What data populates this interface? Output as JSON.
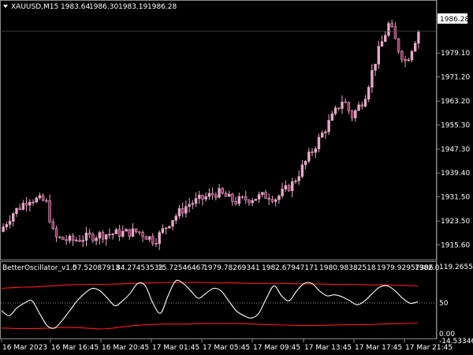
{
  "chart_header": {
    "symbol": "XAUUSD,M15",
    "open": "1983.64",
    "high": "1986.30",
    "low": "1983.19",
    "close": "1986.28"
  },
  "indicator_header": {
    "name": "BetterOscillator_v1.0",
    "v1": "57.52087913",
    "v2": "84.27453533",
    "v3": "15.72546467",
    "v4": "1979.78269341",
    "v5": "1982.67947171",
    "v6": "1980.98382518",
    "v7": "1979.92957306",
    "v8": "1982.0"
  },
  "current_price_label": "1986.28",
  "price_axis": {
    "min": 1911,
    "max": 1993,
    "ticks": [
      "1979.10",
      "1971.20",
      "1963.20",
      "1955.30",
      "1947.30",
      "1939.40",
      "1931.50",
      "1923.50",
      "1915.60"
    ]
  },
  "indicator_axis": {
    "min": -14.5,
    "max": 119.3,
    "ticks": [
      "119.26559",
      "50",
      "0.00",
      "-14.53346"
    ]
  },
  "time_axis": {
    "ticks": [
      "16 Mar 2023",
      "16 Mar 16:45",
      "16 Mar 20:45",
      "17 Mar 01:45",
      "17 Mar 05:45",
      "17 Mar 09:45",
      "17 Mar 13:45",
      "17 Mar 17:45",
      "17 Mar 21:45"
    ]
  },
  "colors": {
    "background": "#000000",
    "candle": "#e8a9c9",
    "candle_dark": "#8c2c55",
    "oscillator": "#ffffff",
    "bands": "#ff1a1a",
    "grid": "#8a8a8a",
    "level_line": "#909090"
  },
  "chart_data": [
    {
      "type": "candlestick",
      "symbol": "XAUUSD",
      "timeframe": "M15",
      "x": [
        "16 Mar 2023",
        "16 Mar 16:45",
        "16 Mar 20:45",
        "17 Mar 01:45",
        "17 Mar 05:45",
        "17 Mar 09:45",
        "17 Mar 13:45",
        "17 Mar 17:45",
        "17 Mar 21:45"
      ],
      "approx_close_at_ticks": [
        1925,
        1917,
        1919,
        1922,
        1930,
        1931,
        1949,
        1968,
        1986
      ],
      "last_close": 1986.28,
      "ylim": [
        1911,
        1993
      ]
    },
    {
      "type": "line",
      "title": "BetterOscillator_v1.0",
      "series": [
        {
          "name": "oscillator",
          "values": [
            40,
            30,
            45,
            55,
            60,
            35,
            10,
            5,
            20,
            40,
            60,
            75,
            85,
            80,
            65,
            50,
            60,
            75,
            95,
            90,
            55,
            35,
            70,
            100,
            95,
            80,
            65,
            75,
            85,
            80,
            60,
            40,
            30,
            25,
            35,
            65,
            90,
            70,
            60,
            80,
            95,
            95,
            80,
            70,
            72,
            68,
            60,
            52,
            60,
            75,
            88,
            90,
            80,
            65,
            55,
            58
          ]
        },
        {
          "name": "upper band",
          "values": [
            85,
            87,
            88,
            90,
            92,
            93,
            93,
            94,
            95,
            96,
            97,
            97,
            97,
            96,
            96,
            95,
            95,
            95,
            94,
            94,
            93,
            93,
            92,
            92,
            91,
            90
          ]
        },
        {
          "name": "lower band",
          "values": [
            5,
            4,
            4,
            5,
            6,
            5,
            3,
            6,
            10,
            12,
            13,
            13,
            14,
            14,
            14,
            13,
            12,
            11,
            10,
            10,
            11,
            12,
            12,
            13,
            14,
            15
          ]
        }
      ],
      "levels": [
        50
      ],
      "ylim": [
        -14.53346,
        119.26559
      ]
    }
  ]
}
